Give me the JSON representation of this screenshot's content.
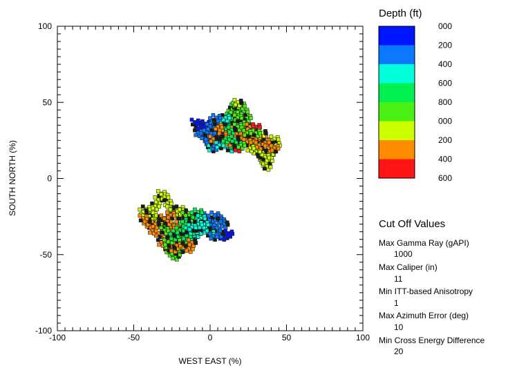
{
  "chart_data": {
    "type": "scatter",
    "xlabel": "WEST EAST (%)",
    "ylabel": "SOUTH NORTH (%)",
    "xlim": [
      -100,
      100
    ],
    "ylim": [
      -100,
      100
    ],
    "xticks": [
      "-100",
      "-50",
      "0",
      "50",
      "100"
    ],
    "yticks": [
      "100",
      "50",
      "0",
      "-50",
      "-100"
    ],
    "grid": false,
    "colorscale": {
      "title": "Depth (ft)",
      "labels": [
        "000",
        "200",
        "400",
        "600",
        "800",
        "000",
        "200",
        "400",
        "600"
      ],
      "colors": [
        "#0015ff",
        "#0a78ff",
        "#00ffd8",
        "#00f050",
        "#4aef14",
        "#ccff00",
        "#ff8c00",
        "#ff1515"
      ]
    },
    "series": [
      {
        "points": [
          [
            -10,
            37,
            0
          ],
          [
            -8,
            35,
            0
          ],
          [
            -7,
            33,
            1
          ],
          [
            -5,
            32,
            1
          ],
          [
            -4,
            30,
            1
          ],
          [
            -3,
            28,
            1
          ],
          [
            -2,
            26,
            1
          ],
          [
            -1,
            24,
            1
          ],
          [
            0,
            22,
            1
          ],
          [
            1,
            20,
            2
          ],
          [
            3,
            21,
            1
          ],
          [
            4,
            23,
            1
          ],
          [
            5,
            25,
            1
          ],
          [
            6,
            27,
            2
          ],
          [
            7,
            29,
            2
          ],
          [
            8,
            31,
            2
          ],
          [
            9,
            33,
            2
          ],
          [
            10,
            35,
            3
          ],
          [
            11,
            37,
            3
          ],
          [
            12,
            39,
            3
          ],
          [
            13,
            41,
            3
          ],
          [
            14,
            43,
            4
          ],
          [
            15,
            45,
            4
          ],
          [
            16,
            47,
            4
          ],
          [
            17,
            48,
            4
          ],
          [
            18,
            46,
            4
          ],
          [
            19,
            44,
            4
          ],
          [
            20,
            42,
            4
          ],
          [
            21,
            40,
            4
          ],
          [
            22,
            38,
            5
          ],
          [
            23,
            36,
            5
          ],
          [
            24,
            34,
            4
          ],
          [
            25,
            32,
            4
          ],
          [
            26,
            30,
            4
          ],
          [
            27,
            28,
            4
          ],
          [
            28,
            26,
            5
          ],
          [
            29,
            24,
            5
          ],
          [
            30,
            22,
            5
          ],
          [
            31,
            20,
            5
          ],
          [
            32,
            18,
            5
          ],
          [
            33,
            16,
            5
          ],
          [
            34,
            14,
            5
          ],
          [
            35,
            12,
            5
          ],
          [
            36,
            10,
            5
          ],
          [
            37,
            8,
            5
          ],
          [
            38,
            12,
            5
          ],
          [
            39,
            16,
            5
          ],
          [
            40,
            20,
            5
          ],
          [
            41,
            24,
            5
          ],
          [
            42,
            26,
            5
          ],
          [
            43,
            22,
            5
          ],
          [
            40,
            18,
            5
          ],
          [
            36,
            14,
            5
          ],
          [
            30,
            18,
            5
          ],
          [
            28,
            22,
            4
          ],
          [
            26,
            26,
            4
          ],
          [
            24,
            40,
            4
          ],
          [
            22,
            44,
            4
          ],
          [
            20,
            48,
            4
          ],
          [
            18,
            50,
            5
          ],
          [
            -3,
            36,
            0
          ],
          [
            -1,
            34,
            0
          ],
          [
            1,
            32,
            1
          ],
          [
            3,
            30,
            1
          ],
          [
            5,
            28,
            1
          ],
          [
            7,
            26,
            1
          ],
          [
            9,
            24,
            1
          ],
          [
            11,
            22,
            2
          ],
          [
            13,
            20,
            2
          ],
          [
            15,
            22,
            3
          ],
          [
            17,
            24,
            3
          ],
          [
            19,
            26,
            3
          ],
          [
            21,
            28,
            4
          ],
          [
            23,
            30,
            4
          ],
          [
            12,
            34,
            3
          ],
          [
            14,
            36,
            3
          ],
          [
            16,
            38,
            3
          ],
          [
            18,
            40,
            4
          ],
          [
            20,
            36,
            4
          ],
          [
            22,
            32,
            4
          ],
          [
            6,
            36,
            1
          ],
          [
            8,
            38,
            2
          ],
          [
            10,
            40,
            2
          ],
          [
            2,
            38,
            1
          ],
          [
            4,
            40,
            1
          ],
          [
            -6,
            34,
            0
          ],
          [
            -8,
            30,
            1
          ],
          [
            -4,
            28,
            1
          ],
          [
            -2,
            30,
            1
          ],
          [
            0,
            34,
            1
          ],
          [
            20,
            30,
            6
          ],
          [
            22,
            28,
            6
          ],
          [
            28,
            30,
            6
          ],
          [
            30,
            26,
            6
          ],
          [
            18,
            20,
            7
          ],
          [
            32,
            22,
            6
          ],
          [
            24,
            24,
            6
          ],
          [
            26,
            34,
            6
          ],
          [
            14,
            28,
            6
          ],
          [
            16,
            32,
            6
          ],
          [
            10,
            30,
            6
          ],
          [
            30,
            34,
            7
          ],
          [
            36,
            24,
            6
          ],
          [
            12,
            24,
            6
          ],
          [
            8,
            28,
            6
          ],
          [
            34,
            28,
            6
          ],
          [
            5,
            34,
            6
          ],
          [
            2,
            26,
            6
          ],
          [
            38,
            20,
            6
          ],
          [
            42,
            20,
            6
          ],
          [
            26,
            20,
            5
          ],
          [
            34,
            30,
            5
          ],
          [
            30,
            30,
            4
          ],
          [
            6,
            22,
            2
          ],
          [
            10,
            26,
            3
          ],
          [
            14,
            32,
            3
          ],
          [
            18,
            34,
            4
          ],
          [
            24,
            30,
            4
          ],
          [
            20,
            22,
            4
          ],
          [
            16,
            26,
            3
          ]
        ]
      },
      {
        "points": [
          [
            12,
            -36,
            0
          ],
          [
            10,
            -37,
            0
          ],
          [
            8,
            -38,
            0
          ],
          [
            6,
            -36,
            1
          ],
          [
            4,
            -34,
            1
          ],
          [
            2,
            -32,
            1
          ],
          [
            0,
            -30,
            1
          ],
          [
            -2,
            -28,
            1
          ],
          [
            -4,
            -26,
            1
          ],
          [
            -6,
            -24,
            1
          ],
          [
            -8,
            -25,
            1
          ],
          [
            -10,
            -27,
            2
          ],
          [
            -12,
            -29,
            2
          ],
          [
            -14,
            -31,
            2
          ],
          [
            -16,
            -33,
            3
          ],
          [
            -18,
            -35,
            3
          ],
          [
            -20,
            -37,
            3
          ],
          [
            -22,
            -39,
            4
          ],
          [
            -24,
            -41,
            4
          ],
          [
            -26,
            -43,
            4
          ],
          [
            -28,
            -45,
            4
          ],
          [
            -27,
            -47,
            4
          ],
          [
            -25,
            -49,
            4
          ],
          [
            -23,
            -51,
            4
          ],
          [
            -21,
            -48,
            4
          ],
          [
            -19,
            -46,
            3
          ],
          [
            -17,
            -44,
            3
          ],
          [
            -15,
            -42,
            3
          ],
          [
            -13,
            -40,
            3
          ],
          [
            -11,
            -38,
            2
          ],
          [
            -9,
            -36,
            2
          ],
          [
            -7,
            -34,
            2
          ],
          [
            -5,
            -32,
            1
          ],
          [
            -3,
            -30,
            1
          ],
          [
            -1,
            -28,
            1
          ],
          [
            1,
            -26,
            1
          ],
          [
            3,
            -24,
            1
          ],
          [
            5,
            -26,
            1
          ],
          [
            7,
            -28,
            1
          ],
          [
            9,
            -30,
            1
          ],
          [
            -30,
            -32,
            4
          ],
          [
            -32,
            -30,
            4
          ],
          [
            -34,
            -28,
            5
          ],
          [
            -36,
            -26,
            5
          ],
          [
            -38,
            -24,
            5
          ],
          [
            -40,
            -22,
            5
          ],
          [
            -42,
            -20,
            5
          ],
          [
            -44,
            -22,
            5
          ],
          [
            -42,
            -26,
            5
          ],
          [
            -40,
            -28,
            5
          ],
          [
            -36,
            -18,
            5
          ],
          [
            -34,
            -14,
            5
          ],
          [
            -32,
            -10,
            5
          ],
          [
            -30,
            -12,
            5
          ],
          [
            -28,
            -16,
            5
          ],
          [
            -26,
            -20,
            5
          ],
          [
            -24,
            -22,
            5
          ],
          [
            -22,
            -24,
            5
          ],
          [
            -20,
            -20,
            5
          ],
          [
            -18,
            -22,
            5
          ],
          [
            -16,
            -24,
            4
          ],
          [
            -14,
            -26,
            4
          ],
          [
            -12,
            -28,
            4
          ],
          [
            -10,
            -24,
            3
          ],
          [
            -8,
            -22,
            3
          ],
          [
            -6,
            -26,
            2
          ],
          [
            -4,
            -30,
            2
          ],
          [
            -2,
            -34,
            2
          ],
          [
            0,
            -36,
            2
          ],
          [
            2,
            -38,
            1
          ],
          [
            -24,
            -30,
            4
          ],
          [
            -22,
            -34,
            4
          ],
          [
            -20,
            -40,
            4
          ],
          [
            -18,
            -42,
            4
          ],
          [
            -16,
            -38,
            3
          ],
          [
            -14,
            -36,
            3
          ],
          [
            -12,
            -34,
            3
          ],
          [
            -10,
            -32,
            2
          ],
          [
            -8,
            -30,
            2
          ],
          [
            -26,
            -36,
            4
          ],
          [
            -30,
            -40,
            6
          ],
          [
            -28,
            -38,
            6
          ],
          [
            -26,
            -32,
            6
          ],
          [
            -24,
            -46,
            6
          ],
          [
            -22,
            -44,
            6
          ],
          [
            -34,
            -36,
            6
          ],
          [
            -38,
            -34,
            6
          ],
          [
            -40,
            -30,
            6
          ],
          [
            -30,
            -26,
            6
          ],
          [
            -20,
            -30,
            6
          ],
          [
            -32,
            -42,
            6
          ],
          [
            -36,
            -30,
            6
          ],
          [
            -28,
            -28,
            6
          ],
          [
            -18,
            -32,
            6
          ],
          [
            -16,
            -44,
            6
          ],
          [
            -42,
            -28,
            6
          ],
          [
            -44,
            -26,
            6
          ],
          [
            -26,
            -24,
            6
          ],
          [
            -14,
            -46,
            6
          ],
          [
            -12,
            -42,
            6
          ],
          [
            -30,
            -34,
            4
          ],
          [
            -28,
            -42,
            4
          ],
          [
            -26,
            -40,
            4
          ],
          [
            -24,
            -38,
            3
          ],
          [
            -22,
            -36,
            3
          ],
          [
            -20,
            -34,
            3
          ],
          [
            -18,
            -28,
            3
          ],
          [
            -16,
            -30,
            3
          ],
          [
            -14,
            -34,
            2
          ],
          [
            -12,
            -32,
            2
          ]
        ]
      }
    ],
    "cutoff": {
      "title": "Cut Off Values",
      "items": [
        {
          "label": "Max Gamma Ray (gAPI)",
          "value": "1000"
        },
        {
          "label": "Max Caliper (in)",
          "value": "11"
        },
        {
          "label": "Min ITT-based Anisotropy",
          "value": "1"
        },
        {
          "label": "Max Azimuth Error (deg)",
          "value": "10"
        },
        {
          "label": "Min Cross Energy Difference",
          "value": "20"
        }
      ]
    }
  }
}
